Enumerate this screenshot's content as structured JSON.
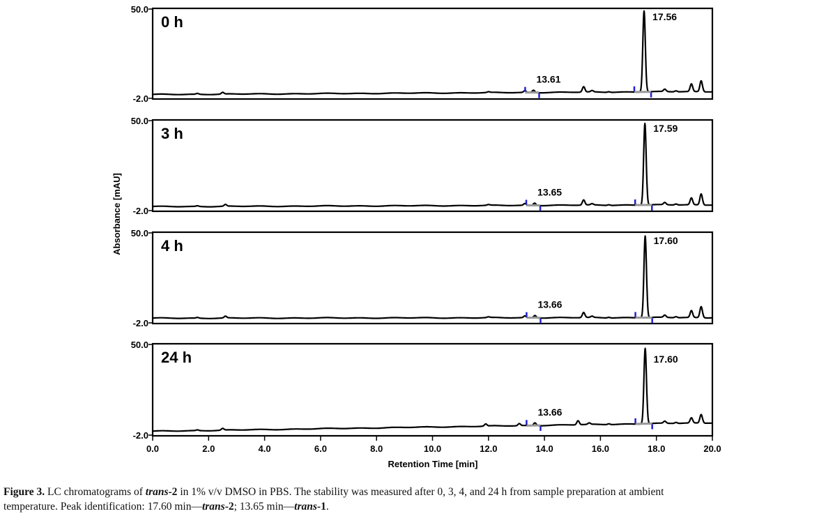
{
  "chart_data": {
    "type": "line",
    "xlabel": "Retention Time [min]",
    "ylabel": "Absorbance [mAU]",
    "xlim": [
      0.0,
      20.0
    ],
    "ylim": [
      -2.0,
      50.0
    ],
    "x_tick_labels": [
      "0.0",
      "2.0",
      "4.0",
      "6.0",
      "8.0",
      "10.0",
      "12.0",
      "14.0",
      "16.0",
      "18.0",
      "20.0"
    ],
    "y_tick_labels": {
      "top": "50.0",
      "bottom": "-2.0"
    },
    "panels": [
      {
        "label": "0 h",
        "baseline_start": -1.0,
        "baseline_end": 0.8,
        "main_peak": {
          "x": 17.56,
          "height": 48.0,
          "label": "17.56"
        },
        "minor_peak": {
          "x": 13.61,
          "label": "13.61"
        },
        "small_peaks": [
          {
            "x": 1.6,
            "h": 0.5
          },
          {
            "x": 2.5,
            "h": 1.0
          },
          {
            "x": 12.0,
            "h": 0.4
          },
          {
            "x": 13.3,
            "h": 1.0
          },
          {
            "x": 13.61,
            "h": 1.4
          },
          {
            "x": 15.4,
            "h": 3.2
          },
          {
            "x": 15.7,
            "h": 0.8
          },
          {
            "x": 16.3,
            "h": 0.4
          },
          {
            "x": 18.3,
            "h": 1.4
          },
          {
            "x": 18.7,
            "h": 0.6
          },
          {
            "x": 19.25,
            "h": 4.5
          },
          {
            "x": 19.6,
            "h": 6.5
          }
        ]
      },
      {
        "label": "3 h",
        "baseline_start": -0.9,
        "baseline_end": 0.2,
        "main_peak": {
          "x": 17.59,
          "height": 48.0,
          "label": "17.59"
        },
        "minor_peak": {
          "x": 13.65,
          "label": "13.65"
        },
        "small_peaks": [
          {
            "x": 1.6,
            "h": 0.4
          },
          {
            "x": 2.6,
            "h": 1.0
          },
          {
            "x": 12.0,
            "h": 0.4
          },
          {
            "x": 13.3,
            "h": 1.0
          },
          {
            "x": 13.65,
            "h": 1.4
          },
          {
            "x": 15.4,
            "h": 3.0
          },
          {
            "x": 15.7,
            "h": 0.7
          },
          {
            "x": 16.3,
            "h": 0.4
          },
          {
            "x": 18.3,
            "h": 1.3
          },
          {
            "x": 18.7,
            "h": 0.6
          },
          {
            "x": 19.25,
            "h": 4.0
          },
          {
            "x": 19.6,
            "h": 6.5
          }
        ]
      },
      {
        "label": "4 h",
        "baseline_start": -0.5,
        "baseline_end": -0.1,
        "main_peak": {
          "x": 17.6,
          "height": 48.0,
          "label": "17.60"
        },
        "minor_peak": {
          "x": 13.66,
          "label": "13.66"
        },
        "small_peaks": [
          {
            "x": 1.6,
            "h": 0.4
          },
          {
            "x": 2.6,
            "h": 1.0
          },
          {
            "x": 12.0,
            "h": 0.4
          },
          {
            "x": 13.3,
            "h": 1.0
          },
          {
            "x": 13.66,
            "h": 1.4
          },
          {
            "x": 15.4,
            "h": 3.0
          },
          {
            "x": 15.7,
            "h": 0.7
          },
          {
            "x": 16.3,
            "h": 0.4
          },
          {
            "x": 18.3,
            "h": 1.3
          },
          {
            "x": 18.7,
            "h": 0.6
          },
          {
            "x": 19.25,
            "h": 4.0
          },
          {
            "x": 19.6,
            "h": 6.5
          }
        ]
      },
      {
        "label": "24 h",
        "baseline_start": -1.0,
        "baseline_end": 4.0,
        "main_peak": {
          "x": 17.6,
          "height": 44.0,
          "label": "17.60"
        },
        "minor_peak": {
          "x": 13.66,
          "label": "13.66"
        },
        "small_peaks": [
          {
            "x": 1.6,
            "h": 0.4
          },
          {
            "x": 2.5,
            "h": 1.0
          },
          {
            "x": 11.9,
            "h": 1.2
          },
          {
            "x": 13.1,
            "h": 1.2
          },
          {
            "x": 13.66,
            "h": 1.6
          },
          {
            "x": 15.2,
            "h": 2.4
          },
          {
            "x": 15.6,
            "h": 0.8
          },
          {
            "x": 16.3,
            "h": 0.5
          },
          {
            "x": 18.3,
            "h": 1.2
          },
          {
            "x": 18.7,
            "h": 0.6
          },
          {
            "x": 19.25,
            "h": 3.0
          },
          {
            "x": 19.6,
            "h": 5.0
          }
        ]
      }
    ]
  },
  "caption": {
    "figure_label": "Figure 3.",
    "line1_parts": [
      {
        "text": " LC chromatograms of ",
        "style": "normal"
      },
      {
        "text": "trans",
        "style": "bold-italic"
      },
      {
        "text": "-2",
        "style": "bold"
      },
      {
        "text": " in 1% v/v DMSO in PBS. The stability was measured after 0, 3, 4, and 24 h from sample preparation at ambient",
        "style": "normal"
      }
    ],
    "line2_parts": [
      {
        "text": "temperature. Peak identification: 17.60 min—",
        "style": "normal"
      },
      {
        "text": "trans",
        "style": "bold-italic"
      },
      {
        "text": "-2",
        "style": "bold"
      },
      {
        "text": "; 13.65 min—",
        "style": "normal"
      },
      {
        "text": "trans",
        "style": "bold-italic"
      },
      {
        "text": "-1",
        "style": "bold"
      },
      {
        "text": ".",
        "style": "normal"
      }
    ]
  },
  "colors": {
    "trace": "#000000",
    "integration_baseline": "#999999",
    "integration_marker": "#1f1fd0"
  }
}
